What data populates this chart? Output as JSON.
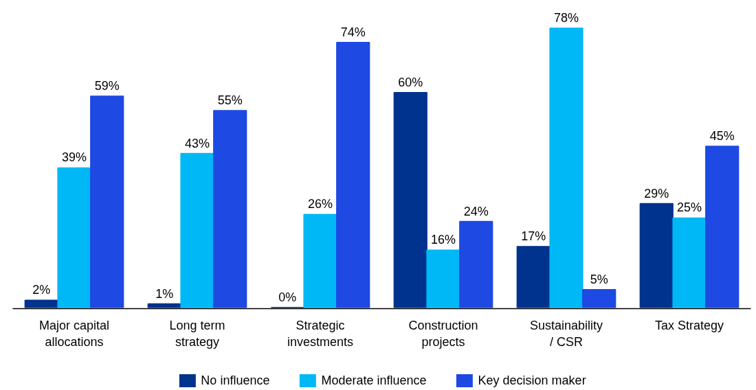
{
  "chart_data": {
    "type": "bar",
    "categories": [
      "Major capital allocations",
      "Long term strategy",
      "Strategic investments",
      "Construction projects",
      "Sustainability / CSR",
      "Tax Strategy"
    ],
    "series": [
      {
        "name": "No influence",
        "color": "#00338d",
        "values": [
          2,
          1,
          0,
          60,
          17,
          29
        ],
        "value_labels": [
          "2%",
          "1%",
          "0%",
          "60%",
          "17%",
          "29%"
        ]
      },
      {
        "name": "Moderate influence",
        "color": "#00b8f5",
        "values": [
          39,
          43,
          26,
          16,
          78,
          25
        ],
        "value_labels": [
          "39%",
          "43%",
          "26%",
          "16%",
          "78%",
          "25%"
        ]
      },
      {
        "name": "Key decision maker",
        "color": "#1e49e2",
        "values": [
          59,
          55,
          74,
          24,
          5,
          45
        ],
        "value_labels": [
          "59%",
          "55%",
          "74%",
          "24%",
          "5%",
          "45%"
        ]
      }
    ],
    "grid": false,
    "legend": "bottom",
    "tick_labels": "x"
  }
}
